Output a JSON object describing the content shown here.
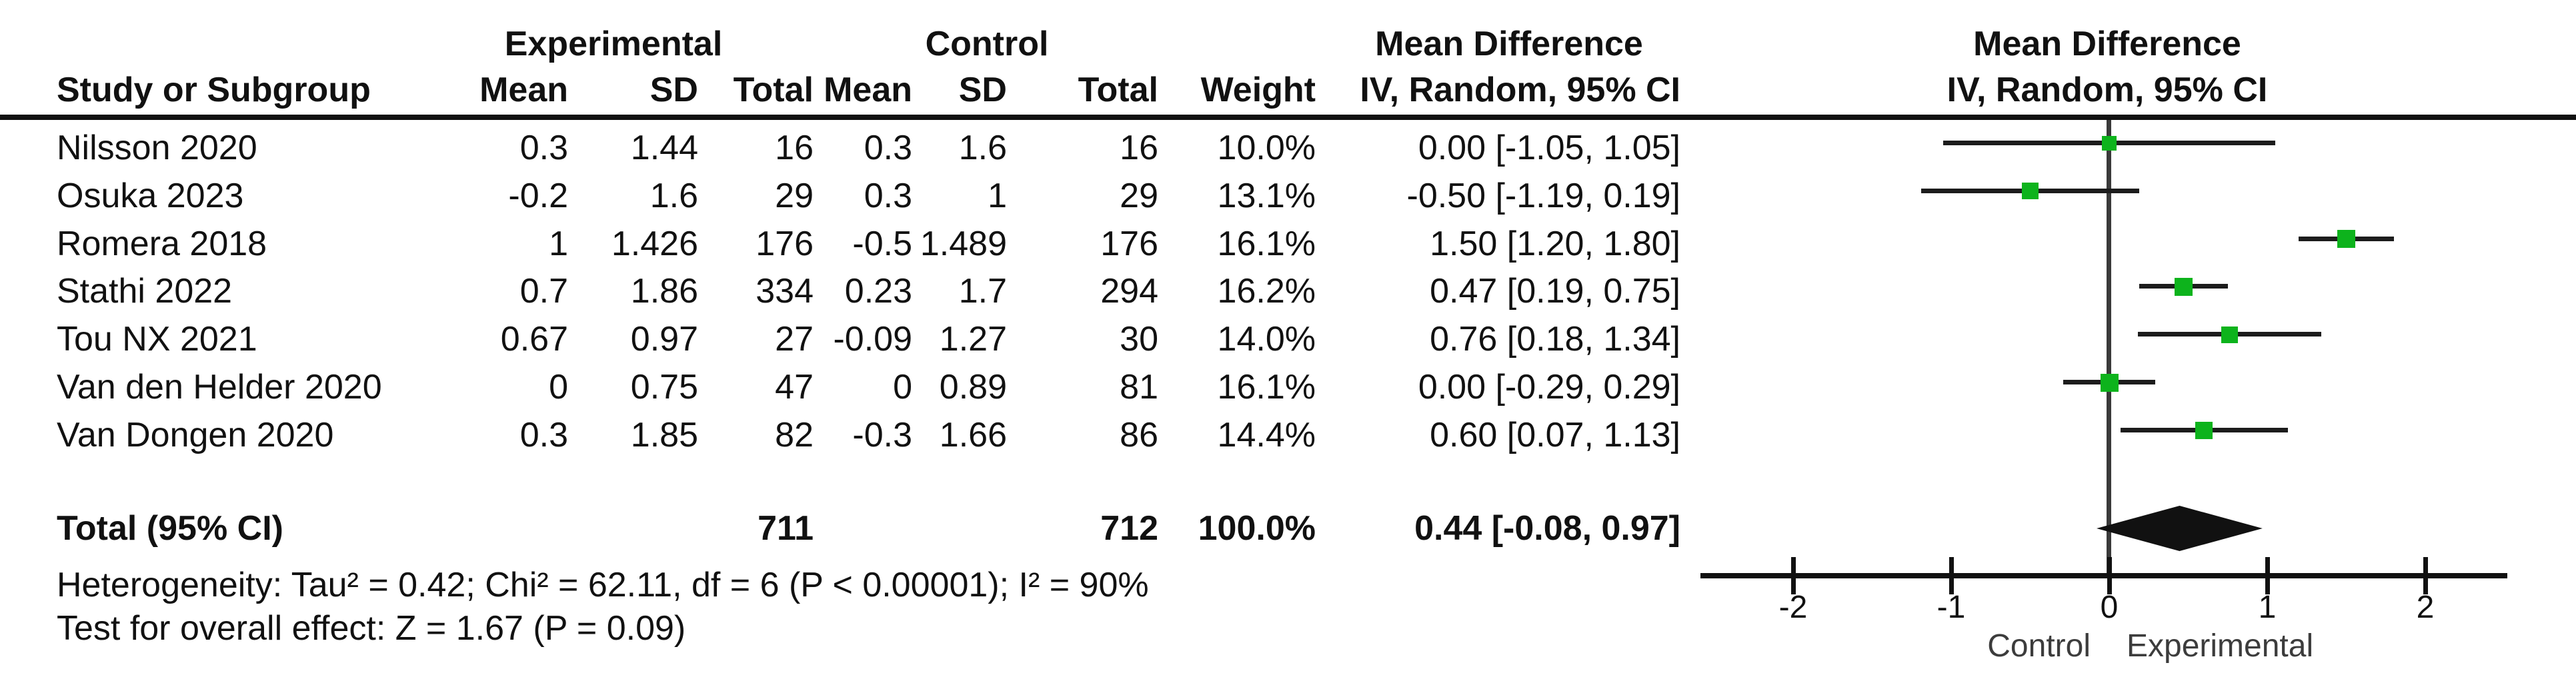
{
  "table": {
    "group_headers": {
      "experimental": "Experimental",
      "control": "Control",
      "mean_difference": "Mean Difference"
    },
    "col_headers": {
      "study": "Study or Subgroup",
      "exp_mean": "Mean",
      "exp_sd": "SD",
      "exp_total": "Total",
      "ctrl_mean": "Mean",
      "ctrl_sd": "SD",
      "ctrl_total": "Total",
      "weight": "Weight",
      "ci": "IV, Random, 95% CI"
    },
    "rows": [
      {
        "study": "Nilsson 2020",
        "exp_mean": "0.3",
        "exp_sd": "1.44",
        "exp_total": "16",
        "ctrl_mean": "0.3",
        "ctrl_sd": "1.6",
        "ctrl_total": "16",
        "weight": "10.0%",
        "ci": "0.00 [-1.05, 1.05]"
      },
      {
        "study": "Osuka 2023",
        "exp_mean": "-0.2",
        "exp_sd": "1.6",
        "exp_total": "29",
        "ctrl_mean": "0.3",
        "ctrl_sd": "1",
        "ctrl_total": "29",
        "weight": "13.1%",
        "ci": "-0.50 [-1.19, 0.19]"
      },
      {
        "study": "Romera 2018",
        "exp_mean": "1",
        "exp_sd": "1.426",
        "exp_total": "176",
        "ctrl_mean": "-0.5",
        "ctrl_sd": "1.489",
        "ctrl_total": "176",
        "weight": "16.1%",
        "ci": "1.50 [1.20, 1.80]"
      },
      {
        "study": "Stathi 2022",
        "exp_mean": "0.7",
        "exp_sd": "1.86",
        "exp_total": "334",
        "ctrl_mean": "0.23",
        "ctrl_sd": "1.7",
        "ctrl_total": "294",
        "weight": "16.2%",
        "ci": "0.47 [0.19, 0.75]"
      },
      {
        "study": "Tou NX 2021",
        "exp_mean": "0.67",
        "exp_sd": "0.97",
        "exp_total": "27",
        "ctrl_mean": "-0.09",
        "ctrl_sd": "1.27",
        "ctrl_total": "30",
        "weight": "14.0%",
        "ci": "0.76 [0.18, 1.34]"
      },
      {
        "study": "Van den Helder 2020",
        "exp_mean": "0",
        "exp_sd": "0.75",
        "exp_total": "47",
        "ctrl_mean": "0",
        "ctrl_sd": "0.89",
        "ctrl_total": "81",
        "weight": "16.1%",
        "ci": "0.00 [-0.29, 0.29]"
      },
      {
        "study": "Van Dongen 2020",
        "exp_mean": "0.3",
        "exp_sd": "1.85",
        "exp_total": "82",
        "ctrl_mean": "-0.3",
        "ctrl_sd": "1.66",
        "ctrl_total": "86",
        "weight": "14.4%",
        "ci": "0.60 [0.07, 1.13]"
      }
    ],
    "total_row": {
      "label": "Total (95% CI)",
      "exp_total": "711",
      "ctrl_total": "712",
      "weight": "100.0%",
      "ci": "0.44 [-0.08, 0.97]"
    },
    "heterogeneity": "Heterogeneity: Tau² = 0.42; Chi² = 62.11, df = 6 (P < 0.00001); I² = 90%",
    "overall_effect": "Test for overall effect: Z = 1.67 (P = 0.09)"
  },
  "plot": {
    "header_line1": "Mean Difference",
    "header_line2": "IV, Random, 95% CI",
    "footer_left_label": "Control",
    "footer_right_label": "Experimental"
  },
  "chart_data": {
    "type": "forest",
    "title": "Mean Difference",
    "subtitle": "IV, Random, 95% CI",
    "effect_measure": "Mean Difference, IV, Random, 95% CI",
    "x_axis": {
      "ticks": [
        -2,
        -1,
        0,
        1,
        2
      ],
      "range": [
        -2.6,
        2.55
      ],
      "zero_line": 0,
      "left_label": "Control",
      "right_label": "Experimental",
      "grid": false
    },
    "studies": [
      {
        "name": "Nilsson 2020",
        "md": 0.0,
        "ci_low": -1.05,
        "ci_high": 1.05,
        "weight_pct": 10.0
      },
      {
        "name": "Osuka 2023",
        "md": -0.5,
        "ci_low": -1.19,
        "ci_high": 0.19,
        "weight_pct": 13.1
      },
      {
        "name": "Romera 2018",
        "md": 1.5,
        "ci_low": 1.2,
        "ci_high": 1.8,
        "weight_pct": 16.1
      },
      {
        "name": "Stathi 2022",
        "md": 0.47,
        "ci_low": 0.19,
        "ci_high": 0.75,
        "weight_pct": 16.2
      },
      {
        "name": "Tou NX 2021",
        "md": 0.76,
        "ci_low": 0.18,
        "ci_high": 1.34,
        "weight_pct": 14.0
      },
      {
        "name": "Van den Helder 2020",
        "md": 0.0,
        "ci_low": -0.29,
        "ci_high": 0.29,
        "weight_pct": 16.1
      },
      {
        "name": "Van Dongen 2020",
        "md": 0.6,
        "ci_low": 0.07,
        "ci_high": 1.13,
        "weight_pct": 14.4
      }
    ],
    "total": {
      "name": "Total (95% CI)",
      "md": 0.44,
      "ci_low": -0.08,
      "ci_high": 0.97,
      "weight_pct": 100.0
    },
    "marker_color": "#0db31c",
    "diamond_color": "#111111"
  }
}
